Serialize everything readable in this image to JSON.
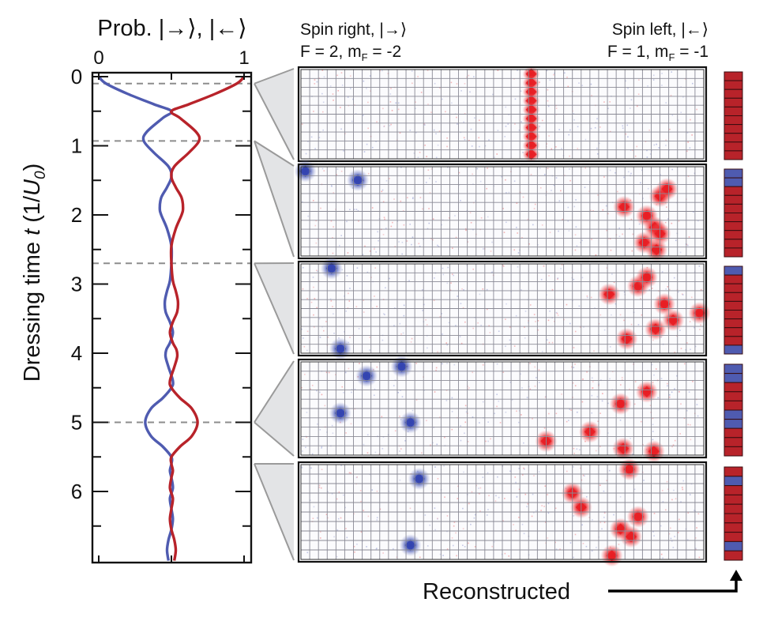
{
  "chart_data": {
    "type": "line",
    "title": "Prob. |→⟩, |←⟩",
    "xlabel": "Prob. |→⟩, |←⟩",
    "ylabel_parts": [
      "Dressing time ",
      "t",
      " (1/",
      "U",
      "0",
      ")"
    ],
    "ylabel": "Dressing time t (1/U0)",
    "xlim": [
      0,
      1
    ],
    "ylim": [
      0,
      7
    ],
    "x_ticks": [
      0,
      0.5,
      1
    ],
    "x_tick_labels": [
      "0",
      "1"
    ],
    "x_tick_label_values": [
      0,
      1
    ],
    "y_ticks": [
      0,
      0.5,
      1,
      1.5,
      2,
      2.5,
      3,
      3.5,
      4,
      4.5,
      5,
      5.5,
      6,
      6.5
    ],
    "y_tick_labels": [
      "0",
      "1",
      "2",
      "3",
      "4",
      "5",
      "6"
    ],
    "dashed_times": [
      0.1,
      0.93,
      2.7,
      5.0
    ],
    "series": [
      {
        "name": "Spin right |→⟩",
        "color": "#4f5bb0",
        "t": [
          0,
          0.1,
          0.25,
          0.4,
          0.5,
          0.6,
          0.8,
          0.93,
          1.1,
          1.3,
          1.45,
          1.6,
          1.75,
          1.9,
          2.0,
          2.2,
          2.45,
          2.7,
          2.95,
          3.1,
          3.25,
          3.4,
          3.55,
          3.7,
          3.85,
          3.95,
          4.05,
          4.2,
          4.4,
          4.5,
          4.65,
          4.8,
          5.0,
          5.2,
          5.35,
          5.5,
          5.6,
          5.7,
          5.8,
          5.95,
          6.1,
          6.25,
          6.4,
          6.55,
          6.7,
          6.85,
          7.0
        ],
        "values": [
          0.0,
          0.05,
          0.2,
          0.38,
          0.5,
          0.44,
          0.33,
          0.31,
          0.38,
          0.48,
          0.5,
          0.47,
          0.43,
          0.42,
          0.43,
          0.47,
          0.5,
          0.5,
          0.49,
          0.47,
          0.455,
          0.46,
          0.49,
          0.51,
          0.49,
          0.465,
          0.46,
          0.48,
          0.51,
          0.5,
          0.44,
          0.36,
          0.32,
          0.36,
          0.44,
          0.5,
          0.5,
          0.49,
          0.5,
          0.51,
          0.49,
          0.5,
          0.51,
          0.5,
          0.48,
          0.47,
          0.48
        ]
      },
      {
        "name": "Spin left |←⟩",
        "color": "#b8232a",
        "t": [
          0,
          0.1,
          0.25,
          0.4,
          0.5,
          0.6,
          0.8,
          0.93,
          1.1,
          1.3,
          1.45,
          1.6,
          1.75,
          1.9,
          2.0,
          2.2,
          2.45,
          2.7,
          2.95,
          3.1,
          3.25,
          3.4,
          3.55,
          3.7,
          3.85,
          3.95,
          4.05,
          4.2,
          4.4,
          4.5,
          4.65,
          4.8,
          5.0,
          5.2,
          5.35,
          5.5,
          5.6,
          5.7,
          5.8,
          5.95,
          6.1,
          6.25,
          6.4,
          6.55,
          6.7,
          6.85,
          7.0
        ],
        "values": [
          1.0,
          0.95,
          0.8,
          0.62,
          0.5,
          0.56,
          0.67,
          0.69,
          0.62,
          0.52,
          0.5,
          0.53,
          0.57,
          0.58,
          0.57,
          0.53,
          0.5,
          0.5,
          0.51,
          0.53,
          0.545,
          0.54,
          0.51,
          0.49,
          0.51,
          0.535,
          0.54,
          0.52,
          0.49,
          0.5,
          0.56,
          0.64,
          0.68,
          0.64,
          0.56,
          0.5,
          0.5,
          0.51,
          0.5,
          0.49,
          0.51,
          0.5,
          0.49,
          0.5,
          0.52,
          0.53,
          0.52
        ]
      }
    ]
  },
  "panels_header": {
    "left_title": "Spin right, |→⟩",
    "left_sub_prefix": "F = 2, m",
    "left_sub_sub": "F",
    "left_sub_suffix": " = -2",
    "right_title": "Spin left, |←⟩",
    "right_sub_prefix": "F = 1, m",
    "right_sub_sub": "F",
    "right_sub_suffix": " = -1"
  },
  "lattice": {
    "columns": 46,
    "rows": 10
  },
  "colors": {
    "spin_right": "#4f5bb0",
    "spin_left": "#b8232a",
    "atom_right": "#3344b0",
    "atom_left": "#e81e24",
    "grid": "#8a8a95",
    "wedge_fill": "#e3e4e6",
    "wedge_stroke": "#9a9a9a"
  },
  "panels": [
    {
      "time": 0.1,
      "atoms": [
        {
          "spin": "left",
          "col": 26.3,
          "row": 0.5
        },
        {
          "spin": "left",
          "col": 26.3,
          "row": 1.5
        },
        {
          "spin": "left",
          "col": 26.3,
          "row": 2.5
        },
        {
          "spin": "left",
          "col": 26.3,
          "row": 3.5
        },
        {
          "spin": "left",
          "col": 26.3,
          "row": 4.5
        },
        {
          "spin": "left",
          "col": 26.3,
          "row": 5.5
        },
        {
          "spin": "left",
          "col": 26.3,
          "row": 6.5
        },
        {
          "spin": "left",
          "col": 26.3,
          "row": 7.5
        },
        {
          "spin": "left",
          "col": 26.3,
          "row": 8.5
        },
        {
          "spin": "left",
          "col": 26.3,
          "row": 9.5
        }
      ],
      "reconstructed": [
        "left",
        "left",
        "left",
        "left",
        "left",
        "left",
        "left",
        "left",
        "left",
        "left"
      ]
    },
    {
      "time": 0.93,
      "atoms": [
        {
          "spin": "right",
          "col": 0.5,
          "row": 0.5
        },
        {
          "spin": "right",
          "col": 6.5,
          "row": 1.5
        },
        {
          "spin": "left",
          "col": 36.9,
          "row": 4.5
        },
        {
          "spin": "left",
          "col": 39.5,
          "row": 5.5
        },
        {
          "spin": "left",
          "col": 41.0,
          "row": 3.3
        },
        {
          "spin": "left",
          "col": 41.8,
          "row": 2.5
        },
        {
          "spin": "left",
          "col": 40.4,
          "row": 6.8
        },
        {
          "spin": "left",
          "col": 41.0,
          "row": 7.5
        },
        {
          "spin": "left",
          "col": 39.2,
          "row": 8.5
        },
        {
          "spin": "left",
          "col": 40.6,
          "row": 9.3
        }
      ],
      "reconstructed": [
        "right",
        "right",
        "left",
        "left",
        "left",
        "left",
        "left",
        "left",
        "left",
        "left"
      ]
    },
    {
      "time": 2.7,
      "atoms": [
        {
          "spin": "right",
          "col": 3.5,
          "row": 0.5
        },
        {
          "spin": "right",
          "col": 4.5,
          "row": 9.5
        },
        {
          "spin": "left",
          "col": 35.2,
          "row": 3.4
        },
        {
          "spin": "left",
          "col": 37.2,
          "row": 8.4
        },
        {
          "spin": "left",
          "col": 38.5,
          "row": 2.5
        },
        {
          "spin": "left",
          "col": 39.5,
          "row": 1.5
        },
        {
          "spin": "left",
          "col": 41.5,
          "row": 4.5
        },
        {
          "spin": "left",
          "col": 42.5,
          "row": 6.3
        },
        {
          "spin": "left",
          "col": 40.5,
          "row": 7.3
        },
        {
          "spin": "left",
          "col": 45.5,
          "row": 5.5
        }
      ],
      "reconstructed": [
        "right",
        "left",
        "left",
        "left",
        "left",
        "left",
        "left",
        "left",
        "left",
        "right"
      ]
    },
    {
      "time": 5.0,
      "atoms": [
        {
          "spin": "right",
          "col": 7.5,
          "row": 1.5
        },
        {
          "spin": "right",
          "col": 11.5,
          "row": 0.5
        },
        {
          "spin": "right",
          "col": 4.5,
          "row": 5.5
        },
        {
          "spin": "right",
          "col": 12.5,
          "row": 6.5
        },
        {
          "spin": "left",
          "col": 28.0,
          "row": 8.5
        },
        {
          "spin": "left",
          "col": 33.0,
          "row": 7.5
        },
        {
          "spin": "left",
          "col": 36.5,
          "row": 4.5
        },
        {
          "spin": "left",
          "col": 39.5,
          "row": 3.2
        },
        {
          "spin": "left",
          "col": 36.8,
          "row": 9.3
        },
        {
          "spin": "left",
          "col": 40.3,
          "row": 9.6
        }
      ],
      "reconstructed": [
        "right",
        "right",
        "left",
        "left",
        "left",
        "right",
        "right",
        "left",
        "left",
        "left"
      ]
    },
    {
      "time": 5.6,
      "atoms": [
        {
          "spin": "right",
          "col": 13.5,
          "row": 1.5
        },
        {
          "spin": "right",
          "col": 12.5,
          "row": 8.5
        },
        {
          "spin": "left",
          "col": 31.0,
          "row": 3.0
        },
        {
          "spin": "left",
          "col": 32.0,
          "row": 4.5
        },
        {
          "spin": "left",
          "col": 37.5,
          "row": 0.5
        },
        {
          "spin": "left",
          "col": 38.5,
          "row": 5.5
        },
        {
          "spin": "left",
          "col": 36.5,
          "row": 6.8
        },
        {
          "spin": "left",
          "col": 37.7,
          "row": 7.6
        },
        {
          "spin": "left",
          "col": 35.5,
          "row": 9.6
        }
      ],
      "reconstructed": [
        "left",
        "right",
        "left",
        "left",
        "left",
        "left",
        "left",
        "left",
        "right",
        "left"
      ]
    }
  ],
  "footer": {
    "label": "Reconstructed"
  }
}
